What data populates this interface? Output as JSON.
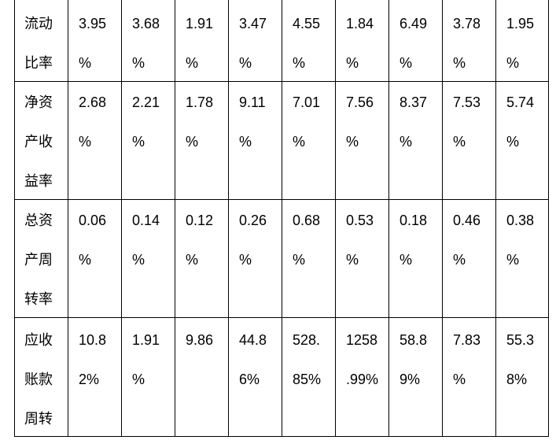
{
  "table": {
    "rows": [
      {
        "label": [
          "流动",
          "比率"
        ],
        "cells": [
          [
            "3.95",
            "%"
          ],
          [
            "3.68",
            "%"
          ],
          [
            "1.91",
            "%"
          ],
          [
            "3.47",
            "%"
          ],
          [
            "4.55",
            "%"
          ],
          [
            "1.84",
            "%"
          ],
          [
            "6.49",
            "%"
          ],
          [
            "3.78",
            "%"
          ],
          [
            "1.95",
            "%"
          ]
        ]
      },
      {
        "label": [
          "净资",
          "产收",
          "益率"
        ],
        "cells": [
          [
            "2.68",
            "%"
          ],
          [
            "2.21",
            "%"
          ],
          [
            "1.78",
            "%"
          ],
          [
            "9.11",
            "%"
          ],
          [
            "7.01",
            "%"
          ],
          [
            "7.56",
            "%"
          ],
          [
            "8.37",
            "%"
          ],
          [
            "7.53",
            "%"
          ],
          [
            "5.74",
            "%"
          ]
        ]
      },
      {
        "label": [
          "总资",
          "产周",
          "转率"
        ],
        "cells": [
          [
            "0.06",
            "%"
          ],
          [
            "0.14",
            "%"
          ],
          [
            "0.12",
            "%"
          ],
          [
            "0.26",
            "%"
          ],
          [
            "0.68",
            "%"
          ],
          [
            "0.53",
            "%"
          ],
          [
            "0.18",
            "%"
          ],
          [
            "0.46",
            "%"
          ],
          [
            "0.38",
            "%"
          ]
        ]
      },
      {
        "label": [
          "应收",
          "账款",
          "周转"
        ],
        "cells": [
          [
            "10.8",
            "2%"
          ],
          [
            "1.91",
            "%"
          ],
          [
            "9.86"
          ],
          [
            "44.8",
            "6%"
          ],
          [
            "528.",
            "85%"
          ],
          [
            "1258",
            ".99%"
          ],
          [
            "58.8",
            "9%"
          ],
          [
            "7.83",
            "%"
          ],
          [
            "55.3",
            "8%"
          ]
        ]
      }
    ]
  }
}
